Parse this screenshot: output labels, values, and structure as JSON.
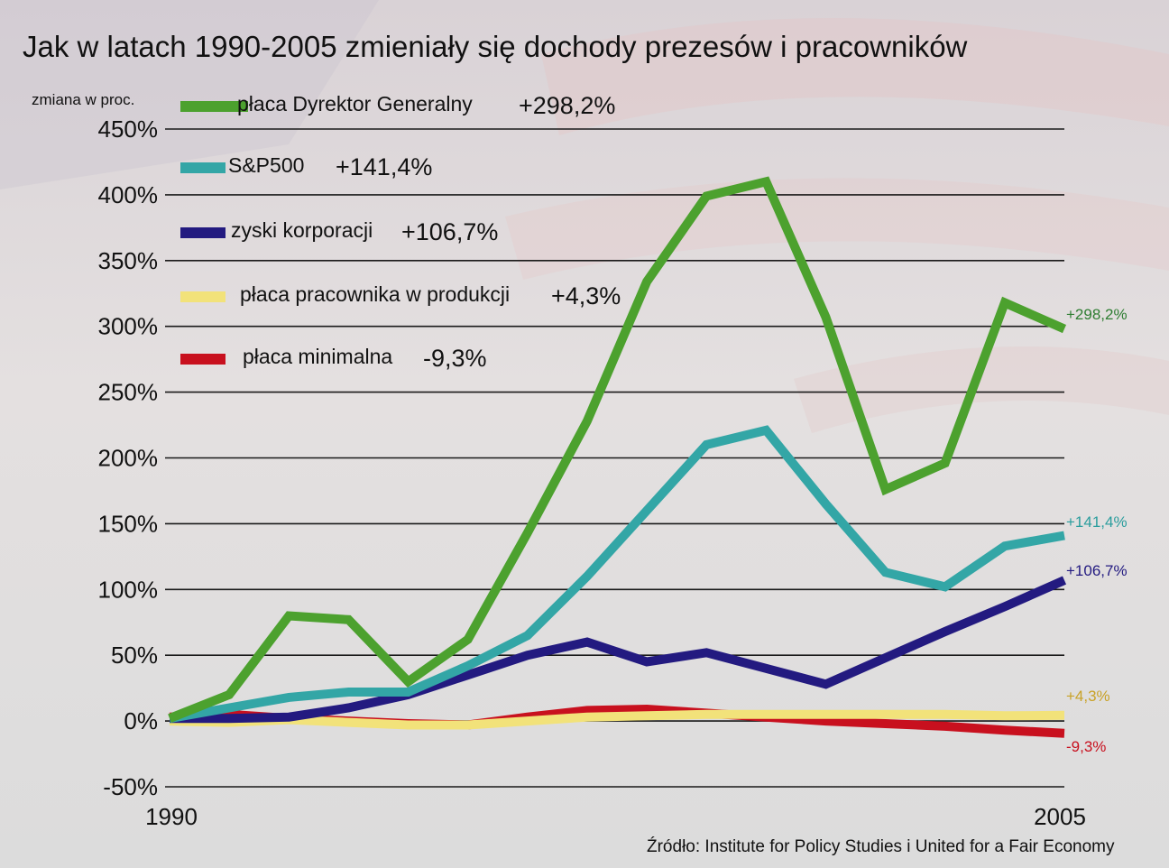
{
  "chart_data": {
    "type": "line",
    "title": "Jak w latach 1990-2005 zmieniały się dochody prezesów i pracowników",
    "ylabel": "zmiana w proc.",
    "xlabel": "",
    "x_tick_labels": [
      "1990",
      "2005"
    ],
    "x": [
      1990,
      1991,
      1992,
      1993,
      1994,
      1995,
      1996,
      1997,
      1998,
      1999,
      2000,
      2001,
      2002,
      2003,
      2004,
      2005
    ],
    "ylim": [
      -50,
      450
    ],
    "yticks": [
      -50,
      0,
      50,
      100,
      150,
      200,
      250,
      300,
      350,
      400,
      450
    ],
    "ytick_labels": [
      "-50%",
      "0%",
      "50%",
      "100%",
      "150%",
      "200%",
      "250%",
      "300%",
      "350%",
      "400%",
      "450%"
    ],
    "grid": true,
    "legend_position": "top-left",
    "source": "Źródło: Institute for Policy Studies i United for a Fair Economy",
    "series": [
      {
        "name": "płaca Dyrektor Generalny",
        "legend_value": "+298,2%",
        "end_label": "+298,2%",
        "color": "#4ca12e",
        "label_color": "#2e7d32",
        "values": [
          2,
          20,
          80,
          77,
          30,
          62,
          143,
          228,
          334,
          399,
          410,
          307,
          176,
          196,
          318,
          298
        ]
      },
      {
        "name": "S&P500",
        "legend_value": "+141,4%",
        "end_label": "+141,4%",
        "color": "#33a6a6",
        "label_color": "#2a9d9d",
        "values": [
          2,
          10,
          18,
          22,
          22,
          42,
          65,
          110,
          160,
          210,
          221,
          165,
          113,
          102,
          133,
          141
        ]
      },
      {
        "name": "zyski korporacji",
        "legend_value": "+106,7%",
        "end_label": "+106,7%",
        "color": "#231a80",
        "label_color": "#231a80",
        "values": [
          2,
          2,
          3,
          10,
          20,
          35,
          50,
          60,
          45,
          52,
          40,
          28,
          48,
          68,
          87,
          107
        ]
      },
      {
        "name": "płaca pracownika w produkcji",
        "legend_value": "+4,3%",
        "end_label": "+4,3%",
        "color": "#f2e27a",
        "label_color": "#c9a227",
        "values": [
          0,
          -1,
          1,
          -1,
          -3,
          -3,
          0,
          3,
          4,
          5,
          5,
          5,
          5,
          5,
          4,
          4.3
        ]
      },
      {
        "name": "płaca minimalna",
        "legend_value": "-9,3%",
        "end_label": "-9,3%",
        "color": "#c8101e",
        "label_color": "#c8101e",
        "values": [
          3,
          5,
          2,
          0,
          -2,
          -3,
          3,
          8,
          9,
          6,
          3,
          0,
          -2,
          -4,
          -7,
          -9.3
        ]
      }
    ]
  }
}
